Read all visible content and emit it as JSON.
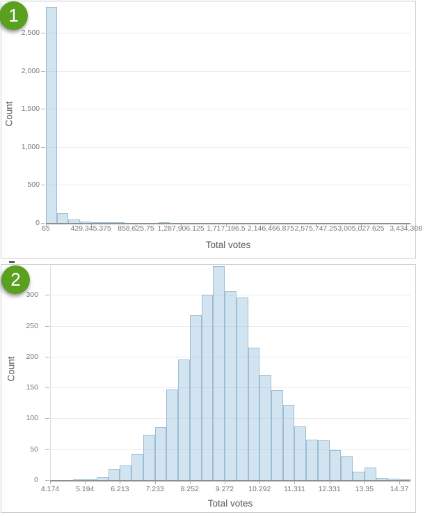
{
  "colors": {
    "panel_border": "#cccccc",
    "badge_green": "#58a01e",
    "badge_text": "#ffffff",
    "bar_fill": "rgba(158,196,225,0.45)",
    "bar_border": "rgba(118,163,197,0.60)",
    "gridline": "#eaeaea",
    "plot_border": "#dddddd",
    "axis_line": "#8f8f8f",
    "tick_mark": "#b0b0b0",
    "tick_label": "#767676",
    "axis_title": "#595959"
  },
  "panels": [
    {
      "badge": "1",
      "chart_data": {
        "type": "bar",
        "subtype": "histogram",
        "title": "",
        "xlabel": "Total votes",
        "ylabel": "Count",
        "grid": true,
        "legend": false,
        "xlim": [
          65,
          3476796
        ],
        "ylim": [
          0,
          2860
        ],
        "bin_start": 65,
        "bin_width": 107320.09,
        "counts": [
          2840,
          128,
          48,
          20,
          8,
          6,
          5,
          4,
          3,
          2,
          8,
          2,
          1,
          1,
          1,
          1,
          0,
          0,
          0,
          0,
          0,
          0,
          0,
          0,
          0,
          0,
          0,
          0,
          0,
          0,
          0,
          1
        ],
        "x_ticks": {
          "values": [
            65,
            429345.375,
            858625.75,
            1287906.125,
            1717186.5,
            2146466.875,
            2575747.25,
            3005027.625,
            3434308
          ],
          "labels": [
            "65",
            "429,345.375",
            "858,625.75",
            "1,287,906.125",
            "1,717,186.5",
            "2,146,466.875",
            "2,575,747.25",
            "3,005,027.625",
            "3,434,308"
          ]
        },
        "y_ticks": {
          "values": [
            0,
            500,
            1000,
            1500,
            2000,
            2500
          ],
          "labels": [
            "0",
            "500",
            "1,000",
            "1,500",
            "2,000",
            "2,500"
          ]
        }
      }
    },
    {
      "badge": "2",
      "chart_data": {
        "type": "bar",
        "subtype": "histogram",
        "title": "",
        "xlabel": "Total votes",
        "ylabel": "Count",
        "grid": true,
        "legend": false,
        "xlim": [
          4.174,
          14.694
        ],
        "ylim": [
          0,
          348
        ],
        "bin_start": 4.174,
        "bin_width": 0.3399,
        "counts": [
          0,
          0,
          1,
          1,
          5,
          18,
          24,
          42,
          73,
          86,
          147,
          196,
          268,
          300,
          347,
          306,
          296,
          215,
          171,
          146,
          122,
          87,
          66,
          64,
          49,
          38,
          14,
          20,
          3,
          2,
          1
        ],
        "x_ticks": {
          "values": [
            4.174,
            5.194,
            6.213,
            7.233,
            8.252,
            9.272,
            10.292,
            11.311,
            12.331,
            13.35,
            14.37
          ],
          "labels": [
            "4.174",
            "5.194",
            "6.213",
            "7.233",
            "8.252",
            "9.272",
            "10.292",
            "11.311",
            "12.331",
            "13.35",
            "14.37"
          ]
        },
        "y_ticks": {
          "values": [
            0,
            50,
            100,
            150,
            200,
            250,
            300
          ],
          "labels": [
            "0",
            "50",
            "100",
            "150",
            "200",
            "250",
            "300"
          ]
        }
      }
    }
  ]
}
